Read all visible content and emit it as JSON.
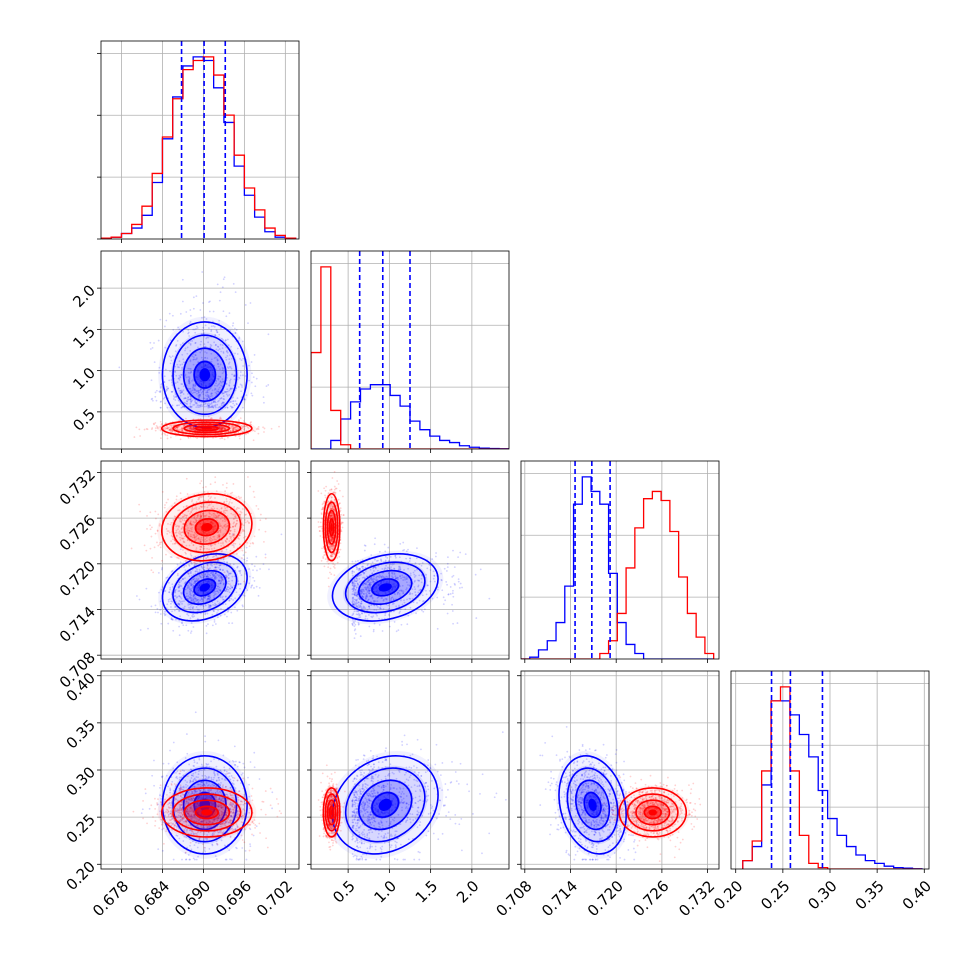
{
  "colors": {
    "blue": "#0000ff",
    "red": "#ff0000",
    "grid": "#b0b0b0",
    "background": "#ffffff"
  },
  "chart_data": {
    "type": "corner",
    "parameters": [
      "p0",
      "p1",
      "p2",
      "p3"
    ],
    "axes": [
      {
        "range": [
          0.675,
          0.704
        ],
        "ticks": [
          0.678,
          0.684,
          0.69,
          0.696,
          0.702
        ],
        "tick_labels": [
          "0.678",
          "0.684",
          "0.690",
          "0.696",
          "0.702"
        ]
      },
      {
        "range": [
          0.05,
          2.45
        ],
        "ticks": [
          0.5,
          1.0,
          1.5,
          2.0
        ],
        "tick_labels": [
          "0.5",
          "1.0",
          "1.5",
          "2.0"
        ]
      },
      {
        "range": [
          0.7075,
          0.7335
        ],
        "ticks": [
          0.708,
          0.714,
          0.72,
          0.726,
          0.732
        ],
        "tick_labels": [
          "0.708",
          "0.714",
          "0.720",
          "0.726",
          "0.732"
        ]
      },
      {
        "range": [
          0.195,
          0.405
        ],
        "ticks": [
          0.2,
          0.25,
          0.3,
          0.35,
          0.4
        ],
        "tick_labels": [
          "0.20",
          "0.25",
          "0.30",
          "0.35",
          "0.40"
        ]
      }
    ],
    "grid": true,
    "series": [
      {
        "color": "#0000ff",
        "quantiles": [
          [
            0.6868,
            0.6901,
            0.6932
          ],
          [
            0.64,
            0.92,
            1.25
          ],
          [
            0.7146,
            0.7168,
            0.7192
          ],
          [
            0.238,
            0.258,
            0.292
          ]
        ],
        "means": [
          0.6902,
          0.95,
          0.7169,
          0.263
        ],
        "sigmas": [
          0.0031,
          0.32,
          0.0022,
          0.026
        ],
        "correlations": {
          "0-1": 0.0,
          "0-2": 0.3,
          "0-3": 0.0,
          "1-2": 0.25,
          "1-3": 0.2,
          "2-3": -0.2
        },
        "histograms": [
          {
            "edges": [
              0.675,
              0.6765,
              0.678,
              0.6795,
              0.681,
              0.6825,
              0.684,
              0.6855,
              0.687,
              0.6885,
              0.69,
              0.6915,
              0.693,
              0.6945,
              0.696,
              0.6975,
              0.699,
              0.7005,
              0.702,
              0.7035
            ],
            "counts": [
              0.5,
              1,
              3,
              6,
              13,
              31,
              55,
              78,
              95,
              100,
              98,
              83,
              64,
              40,
              24,
              12,
              4,
              1,
              0.5
            ]
          },
          {
            "edges": [
              0.05,
              0.17,
              0.29,
              0.41,
              0.53,
              0.65,
              0.77,
              0.89,
              1.01,
              1.13,
              1.25,
              1.37,
              1.49,
              1.61,
              1.73,
              1.85,
              1.97,
              2.09,
              2.21,
              2.33,
              2.45
            ],
            "counts": [
              0,
              0,
              4,
              14,
              22,
              28,
              30,
              30,
              25,
              20,
              13,
              9,
              6,
              4,
              3,
              1.5,
              0.8,
              0.4,
              0.2,
              0.1
            ]
          },
          {
            "edges": [
              0.7075,
              0.70865,
              0.7098,
              0.71095,
              0.7121,
              0.71325,
              0.7144,
              0.71555,
              0.7167,
              0.71785,
              0.719,
              0.72015,
              0.7213,
              0.72245,
              0.7236,
              0.72475,
              0.7259,
              0.72705,
              0.7282,
              0.72935,
              0.7305,
              0.73165,
              0.7328
            ],
            "counts": [
              0,
              1,
              5,
              10,
              20,
              40,
              85,
              100,
              92,
              85,
              47,
              20,
              8,
              3,
              0,
              0,
              0,
              0,
              0,
              0,
              0,
              0
            ]
          },
          {
            "edges": [
              0.2075,
              0.2175,
              0.2275,
              0.2375,
              0.2475,
              0.2575,
              0.2675,
              0.2775,
              0.2875,
              0.2975,
              0.3075,
              0.3175,
              0.3275,
              0.3375,
              0.3475,
              0.3575,
              0.3675,
              0.3775,
              0.3875,
              0.3975
            ],
            "counts": [
              3,
              8,
              30,
              60,
              60,
              55,
              48,
              40,
              28,
              18,
              12,
              8,
              5,
              3,
              2,
              1,
              0.5,
              0.3,
              0.1
            ]
          }
        ]
      },
      {
        "color": "#ff0000",
        "quantiles": [],
        "means": [
          0.6905,
          0.3,
          0.7248,
          0.255
        ],
        "sigmas": [
          0.0033,
          0.05,
          0.0022,
          0.013
        ],
        "correlations": {
          "0-1": 0.0,
          "0-2": 0.1,
          "0-3": 0.0,
          "1-2": 0.0,
          "1-3": 0.0,
          "2-3": 0.0
        },
        "histograms": [
          {
            "edges": [
              0.675,
              0.6765,
              0.678,
              0.6795,
              0.681,
              0.6825,
              0.684,
              0.6855,
              0.687,
              0.6885,
              0.69,
              0.6915,
              0.693,
              0.6945,
              0.696,
              0.6975,
              0.699,
              0.7005,
              0.702,
              0.7035
            ],
            "counts": [
              0.5,
              1,
              3,
              8,
              18,
              36,
              56,
              77,
              93,
              98,
              100,
              90,
              68,
              46,
              28,
              16,
              6,
              2,
              0.5
            ]
          },
          {
            "edges": [
              0.05,
              0.17,
              0.29,
              0.41,
              0.53,
              0.65,
              0.77,
              0.89,
              1.01,
              1.13,
              1.25,
              1.37,
              1.49,
              1.61,
              1.73,
              1.85,
              1.97,
              2.09,
              2.21,
              2.33,
              2.45
            ],
            "counts": [
              45,
              85,
              18,
              2,
              0,
              0,
              0,
              0,
              0,
              0,
              0,
              0,
              0,
              0,
              0,
              0,
              0,
              0,
              0,
              0
            ]
          },
          {
            "edges": [
              0.7075,
              0.70865,
              0.7098,
              0.71095,
              0.7121,
              0.71325,
              0.7144,
              0.71555,
              0.7167,
              0.71785,
              0.719,
              0.72015,
              0.7213,
              0.72245,
              0.7236,
              0.72475,
              0.7259,
              0.72705,
              0.7282,
              0.72935,
              0.7305,
              0.73165,
              0.7328
            ],
            "counts": [
              0,
              0,
              0,
              0,
              0,
              0,
              0,
              0,
              0,
              3,
              10,
              25,
              50,
              72,
              88,
              92,
              87,
              70,
              45,
              25,
              12,
              3
            ]
          },
          {
            "edges": [
              0.2075,
              0.2175,
              0.2275,
              0.2375,
              0.2475,
              0.2575,
              0.2675,
              0.2775,
              0.2875,
              0.2975,
              0.3075,
              0.3175,
              0.3275,
              0.3375,
              0.3475,
              0.3575,
              0.3675,
              0.3775,
              0.3875,
              0.3975
            ],
            "counts": [
              3,
              10,
              35,
              60,
              65,
              35,
              12,
              2,
              0.5,
              0,
              0,
              0,
              0,
              0,
              0,
              0,
              0,
              0,
              0
            ]
          }
        ]
      }
    ]
  }
}
